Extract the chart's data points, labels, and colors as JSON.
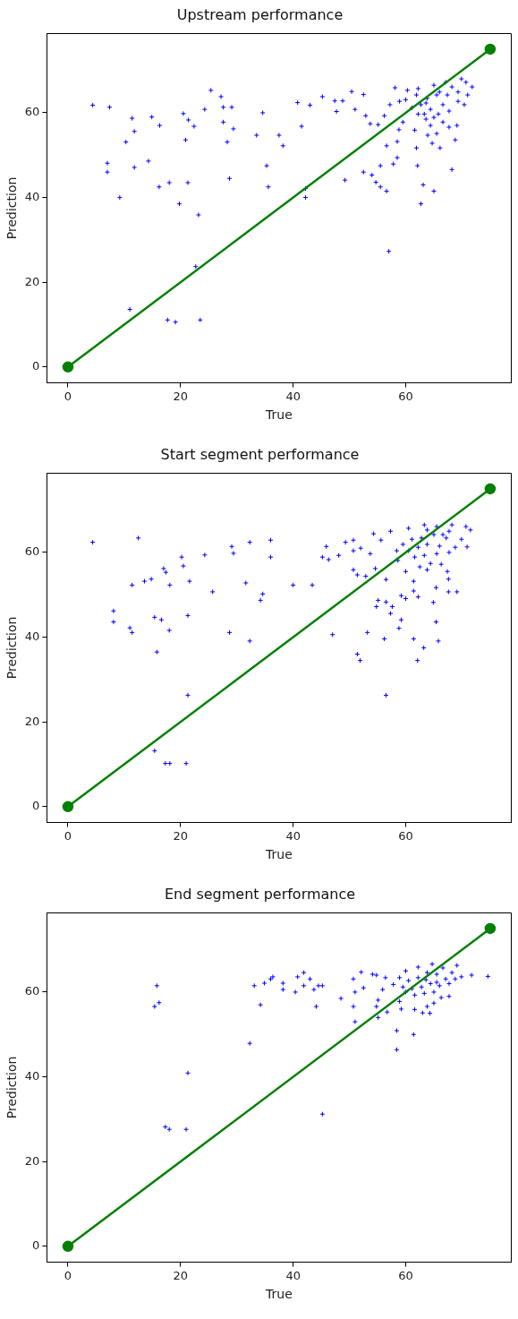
{
  "chart_data": [
    {
      "type": "scatter",
      "title": "Upstream performance",
      "xlabel": "True",
      "ylabel": "Prediction",
      "xlim": [
        -3.75,
        78.75
      ],
      "ylim": [
        -3.75,
        78.75
      ],
      "xticks": [
        0,
        20,
        40,
        60
      ],
      "yticks": [
        0,
        20,
        40,
        60
      ],
      "grid": false,
      "legend": false,
      "series": [
        {
          "type": "scatter",
          "color": "#0000ff",
          "marker": "cross",
          "x": [
            4.4,
            7.4,
            11.4,
            14.9,
            16.3,
            11.8,
            10.3,
            7.0,
            7.0,
            11.8,
            14.3,
            9.2,
            16.2,
            18.0,
            21.3,
            19.8,
            23.2,
            20.5,
            21.4,
            22.4,
            20.9,
            24.3,
            25.4,
            27.2,
            27.6,
            29.1,
            27.6,
            29.4,
            28.3,
            28.7,
            34.6,
            33.5,
            37.5,
            38.2,
            35.3,
            35.6,
            40.8,
            43.0,
            41.5,
            42.2,
            42.2,
            22.7,
            11.0,
            17.7,
            19.1,
            23.5,
            45.2,
            47.4,
            48.8,
            50.4,
            52.5,
            47.7,
            51.0,
            49.2,
            52.5,
            54.0,
            54.7,
            55.5,
            56.6,
            57.0,
            52.9,
            53.7,
            55.1,
            55.5,
            56.6,
            57.8,
            58.5,
            58.5,
            58.8,
            61.9,
            62.1,
            63.1,
            62.7,
            65.0,
            66.1,
            68.2,
            68.8,
            69.1,
            64.7,
            63.9,
            61.6,
            58.1,
            60.3,
            62.2,
            65.0,
            67.1,
            69.9,
            70.7,
            71.8,
            71.0,
            69.3,
            67.7,
            66.6,
            65.5,
            63.8,
            62.7,
            63.3,
            65.0,
            66.6,
            64.4,
            62.2,
            61.1,
            60.0,
            58.9,
            57.2,
            56.2,
            59.5,
            69.3,
            68.2,
            66.0,
            64.4,
            63.6,
            61.9,
            65.5,
            63.6,
            65.8,
            67.7,
            70.4,
            67.4
          ],
          "values": [
            61.8,
            61.3,
            58.7,
            59.0,
            57.0,
            55.6,
            53.1,
            48.1,
            46.0,
            47.1,
            48.6,
            40.0,
            42.5,
            43.5,
            43.5,
            38.5,
            35.9,
            59.8,
            58.3,
            56.8,
            53.6,
            60.8,
            65.3,
            63.8,
            61.3,
            61.3,
            57.8,
            56.2,
            53.1,
            44.5,
            60.0,
            54.7,
            54.7,
            52.2,
            47.5,
            42.5,
            62.4,
            61.8,
            56.8,
            42.1,
            40.0,
            23.7,
            13.6,
            11.1,
            10.6,
            11.1,
            63.8,
            62.8,
            62.8,
            65.0,
            64.3,
            60.3,
            60.8,
            44.1,
            46.0,
            45.3,
            43.6,
            42.5,
            41.5,
            27.3,
            59.3,
            57.4,
            57.2,
            47.5,
            52.2,
            47.9,
            49.4,
            53.2,
            56.0,
            51.7,
            47.5,
            43.0,
            38.5,
            41.5,
            51.7,
            46.6,
            53.6,
            57.0,
            52.8,
            54.7,
            55.9,
            65.9,
            65.3,
            65.7,
            66.5,
            67.2,
            68.0,
            67.2,
            66.1,
            64.2,
            62.7,
            60.4,
            61.9,
            64.2,
            63.4,
            61.9,
            59.7,
            58.9,
            57.8,
            57.0,
            59.7,
            61.2,
            63.1,
            62.7,
            61.9,
            59.3,
            57.8,
            64.9,
            66.1,
            64.9,
            60.8,
            62.3,
            64.2,
            55.1,
            58.5,
            59.7,
            56.6,
            61.9,
            64.2
          ]
        },
        {
          "type": "line",
          "color": "#008000",
          "marker": "circle",
          "x": [
            0,
            75
          ],
          "values": [
            0,
            75
          ]
        }
      ]
    },
    {
      "type": "scatter",
      "title": "Start segment performance",
      "xlabel": "True",
      "ylabel": "Prediction",
      "xlim": [
        -3.75,
        78.75
      ],
      "ylim": [
        -3.75,
        78.75
      ],
      "xticks": [
        0,
        20,
        40,
        60
      ],
      "yticks": [
        0,
        20,
        40,
        60
      ],
      "grid": false,
      "legend": false,
      "series": [
        {
          "type": "scatter",
          "color": "#0000ff",
          "marker": "cross",
          "x": [
            4.4,
            12.5,
            20.2,
            20.5,
            24.3,
            17.0,
            17.4,
            11.4,
            13.6,
            14.8,
            18.1,
            21.6,
            25.7,
            8.1,
            8.1,
            15.4,
            16.6,
            11.0,
            11.4,
            18.0,
            21.3,
            15.8,
            28.7,
            32.3,
            29.1,
            29.4,
            32.3,
            36.0,
            36.0,
            31.6,
            34.6,
            34.2,
            40.0,
            43.4,
            21.3,
            15.4,
            17.3,
            18.1,
            21.0,
            45.2,
            46.3,
            45.9,
            48.1,
            49.3,
            50.7,
            50.7,
            52.0,
            53.7,
            54.3,
            55.6,
            50.7,
            51.4,
            52.9,
            54.6,
            56.5,
            55.1,
            56.5,
            54.8,
            57.6,
            57.3,
            59.2,
            60.0,
            59.2,
            58.8,
            56.2,
            53.2,
            47.0,
            51.4,
            51.9,
            56.5,
            61.4,
            63.2,
            62.1,
            65.4,
            65.8,
            64.9,
            61.4,
            62.2,
            65.4,
            67.6,
            69.1,
            67.6,
            67.4,
            61.4,
            60.0,
            63.8,
            66.3,
            57.3,
            58.6,
            60.5,
            63.3,
            65.5,
            68.2,
            70.7,
            71.5,
            69.9,
            70.9,
            68.8,
            67.2,
            65.0,
            62.8,
            61.1,
            59.5,
            58.4,
            60.5,
            62.2,
            63.8,
            66.0,
            67.7,
            65.5,
            63.3,
            61.6,
            64.4,
            62.5,
            66.6,
            67.7,
            63.8
          ],
          "values": [
            62.4,
            63.4,
            58.9,
            56.8,
            59.4,
            56.2,
            55.3,
            52.3,
            53.2,
            53.7,
            52.3,
            53.2,
            50.7,
            46.2,
            43.6,
            44.7,
            44.1,
            42.2,
            41.1,
            41.6,
            45.1,
            36.5,
            41.1,
            39.1,
            61.4,
            59.8,
            62.4,
            62.9,
            58.9,
            52.8,
            50.2,
            48.7,
            52.3,
            52.3,
            26.3,
            13.2,
            10.2,
            10.2,
            10.2,
            58.9,
            58.3,
            61.4,
            59.3,
            62.4,
            62.9,
            60.4,
            61.0,
            59.7,
            64.4,
            62.9,
            55.9,
            54.7,
            54.4,
            56.2,
            53.6,
            48.7,
            48.3,
            47.2,
            47.2,
            45.6,
            49.8,
            49.1,
            44.1,
            42.1,
            39.6,
            41.1,
            40.6,
            36.0,
            34.5,
            26.3,
            39.6,
            37.5,
            34.5,
            43.6,
            39.1,
            48.2,
            50.9,
            49.5,
            51.7,
            50.7,
            50.7,
            53.7,
            55.5,
            53.2,
            55.5,
            55.9,
            57.2,
            65.0,
            58.1,
            65.7,
            66.5,
            66.1,
            66.5,
            66.1,
            65.3,
            63.1,
            61.3,
            61.2,
            63.4,
            64.2,
            63.4,
            63.1,
            61.9,
            60.4,
            60.4,
            61.2,
            61.9,
            61.5,
            60.0,
            59.7,
            59.3,
            58.9,
            57.4,
            56.6,
            64.2,
            65.0,
            65.3
          ]
        },
        {
          "type": "line",
          "color": "#008000",
          "marker": "circle",
          "x": [
            0,
            75
          ],
          "values": [
            0,
            75
          ]
        }
      ]
    },
    {
      "type": "scatter",
      "title": "End segment performance",
      "xlabel": "True",
      "ylabel": "Prediction",
      "xlim": [
        -3.75,
        78.75
      ],
      "ylim": [
        -3.75,
        78.75
      ],
      "xticks": [
        0,
        20,
        40,
        60
      ],
      "yticks": [
        0,
        20,
        40,
        60
      ],
      "grid": false,
      "legend": false,
      "series": [
        {
          "type": "scatter",
          "color": "#0000ff",
          "marker": "cross",
          "x": [
            15.8,
            15.4,
            16.2,
            21.3,
            17.3,
            18.0,
            21.0,
            32.3,
            45.2,
            33.1,
            34.9,
            36.0,
            36.4,
            34.2,
            38.2,
            38.2,
            40.4,
            40.8,
            41.9,
            41.9,
            43.0,
            43.7,
            44.5,
            45.2,
            44.1,
            48.5,
            50.7,
            51.0,
            52.1,
            52.5,
            50.7,
            51.0,
            54.1,
            54.8,
            55.9,
            54.8,
            55.1,
            55.1,
            56.7,
            59.2,
            58.9,
            58.4,
            58.4,
            61.4,
            61.6,
            63.0,
            64.3,
            65.0,
            63.8,
            67.7,
            66.3,
            69.9,
            71.7,
            74.6,
            69.1,
            56.4,
            57.8,
            60.0,
            62.2,
            64.7,
            66.6,
            68.2,
            67.1,
            65.5,
            63.8,
            62.2,
            60.5,
            58.9,
            59.5,
            61.1,
            62.8,
            64.4,
            66.0,
            67.7,
            68.8,
            63.3,
            65.0,
            61.6,
            60.0,
            65.5,
            63.6
          ],
          "values": [
            61.5,
            56.6,
            57.5,
            40.9,
            28.2,
            27.6,
            27.6,
            47.9,
            31.2,
            61.5,
            62.1,
            63.1,
            63.6,
            57.0,
            62.1,
            60.6,
            60.0,
            63.6,
            64.6,
            61.5,
            63.1,
            60.6,
            61.5,
            61.5,
            56.6,
            58.5,
            63.1,
            60.0,
            64.7,
            61.0,
            56.6,
            53.0,
            64.2,
            64.0,
            60.6,
            56.6,
            58.1,
            54.0,
            55.3,
            56.0,
            57.8,
            50.9,
            46.4,
            50.0,
            55.9,
            55.1,
            55.0,
            57.4,
            56.6,
            59.0,
            58.7,
            63.6,
            64.0,
            63.7,
            66.3,
            63.4,
            61.8,
            65.0,
            65.9,
            66.6,
            65.7,
            64.6,
            63.1,
            64.2,
            64.6,
            63.4,
            62.7,
            63.4,
            61.2,
            60.8,
            61.2,
            62.0,
            61.5,
            62.0,
            63.1,
            59.7,
            60.0,
            59.3,
            60.0,
            62.3,
            62.9
          ]
        },
        {
          "type": "line",
          "color": "#008000",
          "marker": "circle",
          "x": [
            0,
            75
          ],
          "values": [
            0,
            75
          ]
        }
      ]
    }
  ]
}
